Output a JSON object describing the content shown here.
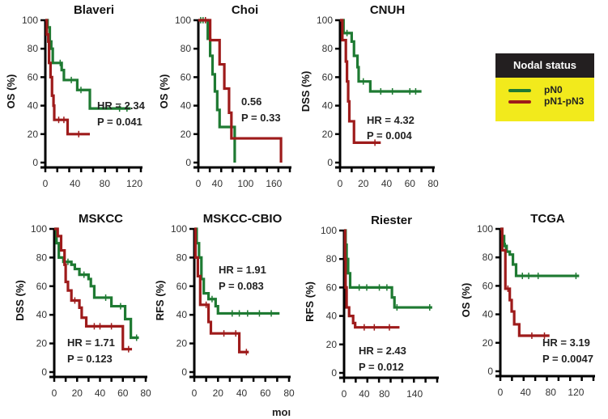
{
  "colors": {
    "pN0": "#1e7a32",
    "pN1": "#9e1b1b",
    "legend_bg": "#f2ea1c",
    "legend_head": "#231f20"
  },
  "legend": {
    "title": "Nodal status",
    "items": [
      {
        "label": "pN0",
        "color": "#1e7a32"
      },
      {
        "label": "pN1-pN3",
        "color": "#9e1b1b"
      }
    ]
  },
  "x_unit_label": "moı",
  "chart_data": [
    {
      "type": "line",
      "title": "Blaveri",
      "ylabel": "OS (%)",
      "xlim": [
        0,
        120
      ],
      "ylim": [
        0,
        100
      ],
      "xticks": [
        0,
        40,
        80,
        120
      ],
      "yticks": [
        0,
        20,
        40,
        60,
        80,
        100
      ],
      "annotation": [
        "HR = 2.34",
        "P = 0.041"
      ],
      "series": [
        {
          "name": "pN0",
          "steps": [
            [
              0,
              100
            ],
            [
              3,
              95
            ],
            [
              6,
              85
            ],
            [
              8,
              80
            ],
            [
              10,
              70
            ],
            [
              22,
              65
            ],
            [
              25,
              58
            ],
            [
              43,
              51
            ],
            [
              60,
              38
            ]
          ],
          "end": 115,
          "censor": [
            [
              20,
              70
            ],
            [
              35,
              58
            ],
            [
              48,
              51
            ],
            [
              100,
              38
            ],
            [
              110,
              38
            ]
          ]
        },
        {
          "name": "pN1-pN3",
          "steps": [
            [
              0,
              100
            ],
            [
              2,
              90
            ],
            [
              4,
              85
            ],
            [
              5,
              70
            ],
            [
              7,
              60
            ],
            [
              9,
              47
            ],
            [
              11,
              40
            ],
            [
              12,
              30
            ],
            [
              30,
              20
            ]
          ],
          "end": 60,
          "censor": [
            [
              18,
              30
            ],
            [
              25,
              30
            ],
            [
              45,
              20
            ]
          ]
        }
      ]
    },
    {
      "type": "line",
      "title": "Choi",
      "ylabel": "OS (%)",
      "xlim": [
        0,
        180
      ],
      "ylim": [
        0,
        100
      ],
      "xticks": [
        0,
        40,
        100,
        160
      ],
      "yticks": [
        0,
        20,
        40,
        60,
        80,
        100
      ],
      "annotation": [
        "0.56",
        "P = 0.33"
      ],
      "series": [
        {
          "name": "pN0",
          "steps": [
            [
              0,
              100
            ],
            [
              20,
              87
            ],
            [
              25,
              75
            ],
            [
              30,
              62
            ],
            [
              35,
              50
            ],
            [
              40,
              37
            ],
            [
              45,
              25
            ],
            [
              77,
              0
            ]
          ],
          "end": 77,
          "censor": [
            [
              5,
              100
            ],
            [
              10,
              100
            ]
          ]
        },
        {
          "name": "pN1-pN3",
          "steps": [
            [
              0,
              100
            ],
            [
              25,
              86
            ],
            [
              45,
              69
            ],
            [
              55,
              52
            ],
            [
              65,
              35
            ],
            [
              70,
              17
            ],
            [
              175,
              0
            ]
          ],
          "end": 175,
          "censor": [
            [
              15,
              100
            ]
          ]
        }
      ]
    },
    {
      "type": "line",
      "title": "CNUH",
      "ylabel": "DSS (%)",
      "xlim": [
        0,
        80
      ],
      "ylim": [
        0,
        100
      ],
      "xticks": [
        0,
        20,
        40,
        60,
        80
      ],
      "yticks": [
        0,
        20,
        40,
        60,
        80,
        100
      ],
      "annotation": [
        "HR = 4.32",
        "P = 0.004"
      ],
      "series": [
        {
          "name": "pN0",
          "steps": [
            [
              0,
              100
            ],
            [
              3,
              91
            ],
            [
              10,
              85
            ],
            [
              12,
              75
            ],
            [
              15,
              67
            ],
            [
              16,
              57
            ],
            [
              26,
              50
            ]
          ],
          "end": 70,
          "censor": [
            [
              6,
              91
            ],
            [
              20,
              57
            ],
            [
              35,
              50
            ],
            [
              45,
              50
            ],
            [
              60,
              50
            ],
            [
              65,
              50
            ]
          ]
        },
        {
          "name": "pN1-pN3",
          "steps": [
            [
              0,
              100
            ],
            [
              2,
              86
            ],
            [
              5,
              71
            ],
            [
              6,
              57
            ],
            [
              7,
              43
            ],
            [
              8,
              29
            ],
            [
              12,
              14
            ]
          ],
          "end": 35,
          "censor": [
            [
              30,
              14
            ]
          ]
        }
      ]
    },
    {
      "type": "line",
      "title": "MSKCC",
      "ylabel": "DSS (%)",
      "xlim": [
        0,
        80
      ],
      "ylim": [
        0,
        100
      ],
      "xticks": [
        0,
        20,
        40,
        60,
        80
      ],
      "yticks": [
        0,
        20,
        40,
        60,
        80,
        100
      ],
      "annotation": [
        "HR = 1.71",
        "P = 0.123"
      ],
      "series": [
        {
          "name": "pN0",
          "steps": [
            [
              0,
              100
            ],
            [
              2,
              90
            ],
            [
              4,
              80
            ],
            [
              8,
              77
            ],
            [
              15,
              75
            ],
            [
              18,
              72
            ],
            [
              22,
              68
            ],
            [
              30,
              65
            ],
            [
              32,
              60
            ],
            [
              35,
              52
            ],
            [
              50,
              46
            ],
            [
              62,
              37
            ],
            [
              67,
              24
            ]
          ],
          "end": 74,
          "censor": [
            [
              12,
              77
            ],
            [
              26,
              68
            ],
            [
              45,
              52
            ],
            [
              58,
              46
            ],
            [
              72,
              24
            ]
          ]
        },
        {
          "name": "pN1-pN3",
          "steps": [
            [
              0,
              100
            ],
            [
              3,
              95
            ],
            [
              6,
              85
            ],
            [
              9,
              75
            ],
            [
              10,
              63
            ],
            [
              12,
              57
            ],
            [
              15,
              50
            ],
            [
              22,
              45
            ],
            [
              24,
              38
            ],
            [
              28,
              32
            ],
            [
              60,
              16
            ]
          ],
          "end": 68,
          "censor": [
            [
              18,
              50
            ],
            [
              35,
              32
            ],
            [
              40,
              32
            ],
            [
              50,
              32
            ],
            [
              65,
              16
            ]
          ]
        }
      ]
    },
    {
      "type": "line",
      "title": "MSKCC-CBIO",
      "ylabel": "RFS (%)",
      "xlim": [
        0,
        80
      ],
      "ylim": [
        0,
        100
      ],
      "xticks": [
        0,
        20,
        40,
        60,
        80
      ],
      "yticks": [
        0,
        20,
        40,
        60,
        80,
        100
      ],
      "annotation": [
        "HR = 1.91",
        "P = 0.083"
      ],
      "series": [
        {
          "name": "pN0",
          "steps": [
            [
              0,
              100
            ],
            [
              2,
              90
            ],
            [
              4,
              80
            ],
            [
              6,
              65
            ],
            [
              8,
              55
            ],
            [
              12,
              51
            ],
            [
              18,
              46
            ],
            [
              20,
              41
            ]
          ],
          "end": 72,
          "censor": [
            [
              15,
              51
            ],
            [
              32,
              41
            ],
            [
              38,
              41
            ],
            [
              45,
              41
            ],
            [
              55,
              41
            ],
            [
              65,
              41
            ]
          ]
        },
        {
          "name": "pN1-pN3",
          "steps": [
            [
              0,
              100
            ],
            [
              1,
              80
            ],
            [
              3,
              67
            ],
            [
              5,
              47
            ],
            [
              12,
              35
            ],
            [
              14,
              27
            ],
            [
              38,
              14
            ]
          ],
          "end": 46,
          "censor": [
            [
              10,
              47
            ],
            [
              25,
              27
            ],
            [
              35,
              27
            ],
            [
              44,
              14
            ]
          ]
        }
      ]
    },
    {
      "type": "line",
      "title": "Riester",
      "ylabel": "RFS (%)",
      "xlim": [
        0,
        180
      ],
      "ylim": [
        0,
        100
      ],
      "xticks": [
        0,
        40,
        80,
        140
      ],
      "yticks": [
        0,
        20,
        40,
        60,
        80,
        100
      ],
      "annotation": [
        "HR = 2.43",
        "P = 0.012"
      ],
      "series": [
        {
          "name": "pN0",
          "steps": [
            [
              0,
              100
            ],
            [
              3,
              90
            ],
            [
              5,
              80
            ],
            [
              8,
              70
            ],
            [
              12,
              60
            ],
            [
              95,
              53
            ],
            [
              100,
              46
            ]
          ],
          "end": 175,
          "censor": [
            [
              30,
              60
            ],
            [
              45,
              60
            ],
            [
              70,
              60
            ],
            [
              85,
              60
            ],
            [
              105,
              46
            ],
            [
              170,
              46
            ]
          ]
        },
        {
          "name": "pN1-pN3",
          "steps": [
            [
              0,
              100
            ],
            [
              2,
              80
            ],
            [
              3,
              60
            ],
            [
              5,
              46
            ],
            [
              10,
              40
            ],
            [
              18,
              35
            ],
            [
              22,
              32
            ]
          ],
          "end": 110,
          "censor": [
            [
              40,
              32
            ],
            [
              60,
              32
            ],
            [
              90,
              32
            ]
          ]
        }
      ]
    },
    {
      "type": "line",
      "title": "TCGA",
      "ylabel": "OS (%)",
      "xlim": [
        0,
        140
      ],
      "ylim": [
        0,
        100
      ],
      "xticks": [
        0,
        40,
        80,
        120
      ],
      "yticks": [
        0,
        20,
        40,
        60,
        80,
        100
      ],
      "annotation": [
        "HR = 3.19",
        "P = 0.0047"
      ],
      "series": [
        {
          "name": "pN0",
          "steps": [
            [
              0,
              100
            ],
            [
              3,
              95
            ],
            [
              6,
              88
            ],
            [
              10,
              84
            ],
            [
              15,
              82
            ],
            [
              20,
              75
            ],
            [
              25,
              67
            ]
          ],
          "end": 125,
          "censor": [
            [
              8,
              88
            ],
            [
              35,
              67
            ],
            [
              45,
              67
            ],
            [
              60,
              67
            ],
            [
              120,
              67
            ]
          ]
        },
        {
          "name": "pN1-pN3",
          "steps": [
            [
              0,
              100
            ],
            [
              3,
              85
            ],
            [
              8,
              58
            ],
            [
              15,
              50
            ],
            [
              18,
              42
            ],
            [
              22,
              33
            ],
            [
              30,
              25
            ]
          ],
          "end": 78,
          "censor": [
            [
              12,
              58
            ],
            [
              50,
              25
            ],
            [
              70,
              25
            ]
          ]
        }
      ]
    }
  ]
}
